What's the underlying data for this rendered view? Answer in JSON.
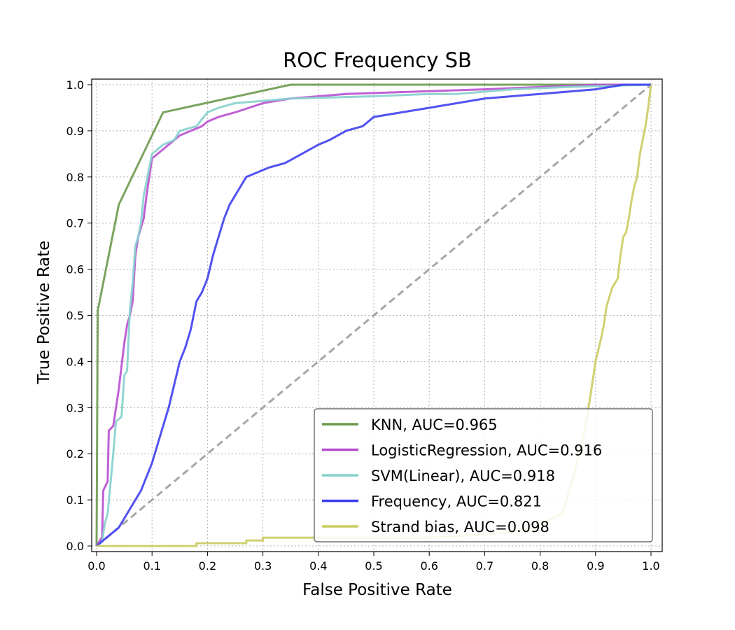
{
  "chart_data": {
    "type": "line",
    "title": "ROC Frequency SB",
    "xlabel": "False Positive Rate",
    "ylabel": "True Positive Rate",
    "xlim": [
      0,
      1
    ],
    "ylim": [
      0,
      1
    ],
    "xticks": [
      "0.0",
      "0.1",
      "0.2",
      "0.3",
      "0.4",
      "0.5",
      "0.6",
      "0.7",
      "0.8",
      "0.9",
      "1.0"
    ],
    "yticks": [
      "0.0",
      "0.1",
      "0.2",
      "0.3",
      "0.4",
      "0.5",
      "0.6",
      "0.7",
      "0.8",
      "0.9",
      "1.0"
    ],
    "grid": true,
    "legend_position": "lower-right",
    "diagonal": {
      "color": "#a6a6ab",
      "style": "dashed"
    },
    "series": [
      {
        "name": "KNN, AUC=0.965",
        "color": "#6b9a4e",
        "points": [
          [
            0,
            0
          ],
          [
            0.002,
            0.51
          ],
          [
            0.04,
            0.74
          ],
          [
            0.12,
            0.94
          ],
          [
            0.35,
            1.0
          ],
          [
            1.0,
            1.0
          ]
        ]
      },
      {
        "name": "LogisticRegression, AUC=0.916",
        "color": "#b84fd0",
        "points": [
          [
            0,
            0
          ],
          [
            0.01,
            0.02
          ],
          [
            0.012,
            0.12
          ],
          [
            0.02,
            0.14
          ],
          [
            0.022,
            0.25
          ],
          [
            0.03,
            0.26
          ],
          [
            0.035,
            0.3
          ],
          [
            0.04,
            0.34
          ],
          [
            0.045,
            0.39
          ],
          [
            0.05,
            0.44
          ],
          [
            0.055,
            0.48
          ],
          [
            0.06,
            0.5
          ],
          [
            0.065,
            0.53
          ],
          [
            0.07,
            0.63
          ],
          [
            0.075,
            0.67
          ],
          [
            0.085,
            0.71
          ],
          [
            0.09,
            0.76
          ],
          [
            0.095,
            0.8
          ],
          [
            0.1,
            0.84
          ],
          [
            0.11,
            0.85
          ],
          [
            0.13,
            0.87
          ],
          [
            0.15,
            0.89
          ],
          [
            0.17,
            0.9
          ],
          [
            0.19,
            0.91
          ],
          [
            0.2,
            0.92
          ],
          [
            0.22,
            0.93
          ],
          [
            0.25,
            0.94
          ],
          [
            0.3,
            0.96
          ],
          [
            0.35,
            0.97
          ],
          [
            0.45,
            0.98
          ],
          [
            0.7,
            0.99
          ],
          [
            0.9,
            1.0
          ],
          [
            1.0,
            1.0
          ]
        ]
      },
      {
        "name": "SVM(Linear), AUC=0.918",
        "color": "#86d0cd",
        "points": [
          [
            0,
            0
          ],
          [
            0.01,
            0.01
          ],
          [
            0.015,
            0.05
          ],
          [
            0.02,
            0.07
          ],
          [
            0.03,
            0.2
          ],
          [
            0.035,
            0.27
          ],
          [
            0.045,
            0.28
          ],
          [
            0.05,
            0.37
          ],
          [
            0.055,
            0.38
          ],
          [
            0.06,
            0.51
          ],
          [
            0.065,
            0.57
          ],
          [
            0.07,
            0.65
          ],
          [
            0.075,
            0.67
          ],
          [
            0.08,
            0.7
          ],
          [
            0.085,
            0.76
          ],
          [
            0.09,
            0.79
          ],
          [
            0.1,
            0.85
          ],
          [
            0.11,
            0.86
          ],
          [
            0.12,
            0.87
          ],
          [
            0.14,
            0.88
          ],
          [
            0.15,
            0.9
          ],
          [
            0.18,
            0.91
          ],
          [
            0.2,
            0.94
          ],
          [
            0.22,
            0.95
          ],
          [
            0.25,
            0.96
          ],
          [
            0.3,
            0.965
          ],
          [
            0.35,
            0.97
          ],
          [
            0.5,
            0.975
          ],
          [
            0.6,
            0.98
          ],
          [
            0.65,
            0.98
          ],
          [
            0.75,
            0.99
          ],
          [
            0.85,
            0.995
          ],
          [
            1.0,
            1.0
          ]
        ]
      },
      {
        "name": "Frequency, AUC=0.821",
        "color": "#3f3fef",
        "points": [
          [
            0,
            0
          ],
          [
            0.01,
            0.01
          ],
          [
            0.02,
            0.02
          ],
          [
            0.03,
            0.03
          ],
          [
            0.04,
            0.04
          ],
          [
            0.05,
            0.06
          ],
          [
            0.06,
            0.08
          ],
          [
            0.07,
            0.1
          ],
          [
            0.08,
            0.12
          ],
          [
            0.09,
            0.15
          ],
          [
            0.1,
            0.18
          ],
          [
            0.11,
            0.22
          ],
          [
            0.12,
            0.26
          ],
          [
            0.13,
            0.3
          ],
          [
            0.14,
            0.35
          ],
          [
            0.15,
            0.4
          ],
          [
            0.16,
            0.43
          ],
          [
            0.17,
            0.47
          ],
          [
            0.18,
            0.53
          ],
          [
            0.19,
            0.55
          ],
          [
            0.2,
            0.58
          ],
          [
            0.21,
            0.63
          ],
          [
            0.22,
            0.67
          ],
          [
            0.23,
            0.71
          ],
          [
            0.24,
            0.74
          ],
          [
            0.25,
            0.76
          ],
          [
            0.26,
            0.78
          ],
          [
            0.27,
            0.8
          ],
          [
            0.29,
            0.81
          ],
          [
            0.31,
            0.82
          ],
          [
            0.34,
            0.83
          ],
          [
            0.37,
            0.85
          ],
          [
            0.4,
            0.87
          ],
          [
            0.42,
            0.88
          ],
          [
            0.45,
            0.9
          ],
          [
            0.48,
            0.91
          ],
          [
            0.5,
            0.93
          ],
          [
            0.55,
            0.94
          ],
          [
            0.6,
            0.95
          ],
          [
            0.65,
            0.96
          ],
          [
            0.7,
            0.97
          ],
          [
            0.8,
            0.98
          ],
          [
            0.9,
            0.99
          ],
          [
            0.95,
            1.0
          ],
          [
            1.0,
            1.0
          ]
        ]
      },
      {
        "name": "Strand bias, AUC=0.098",
        "color": "#cccb62",
        "points": [
          [
            0,
            0
          ],
          [
            0.18,
            0.0
          ],
          [
            0.18,
            0.006
          ],
          [
            0.27,
            0.006
          ],
          [
            0.27,
            0.012
          ],
          [
            0.3,
            0.012
          ],
          [
            0.3,
            0.018
          ],
          [
            0.6,
            0.018
          ],
          [
            0.7,
            0.025
          ],
          [
            0.78,
            0.035
          ],
          [
            0.84,
            0.07
          ],
          [
            0.86,
            0.15
          ],
          [
            0.88,
            0.25
          ],
          [
            0.89,
            0.32
          ],
          [
            0.9,
            0.4
          ],
          [
            0.91,
            0.45
          ],
          [
            0.915,
            0.48
          ],
          [
            0.92,
            0.52
          ],
          [
            0.93,
            0.56
          ],
          [
            0.94,
            0.58
          ],
          [
            0.945,
            0.63
          ],
          [
            0.95,
            0.67
          ],
          [
            0.955,
            0.68
          ],
          [
            0.96,
            0.71
          ],
          [
            0.965,
            0.75
          ],
          [
            0.97,
            0.78
          ],
          [
            0.975,
            0.8
          ],
          [
            0.98,
            0.85
          ],
          [
            0.985,
            0.88
          ],
          [
            0.99,
            0.91
          ],
          [
            0.995,
            0.95
          ],
          [
            1.0,
            1.0
          ]
        ]
      }
    ]
  }
}
